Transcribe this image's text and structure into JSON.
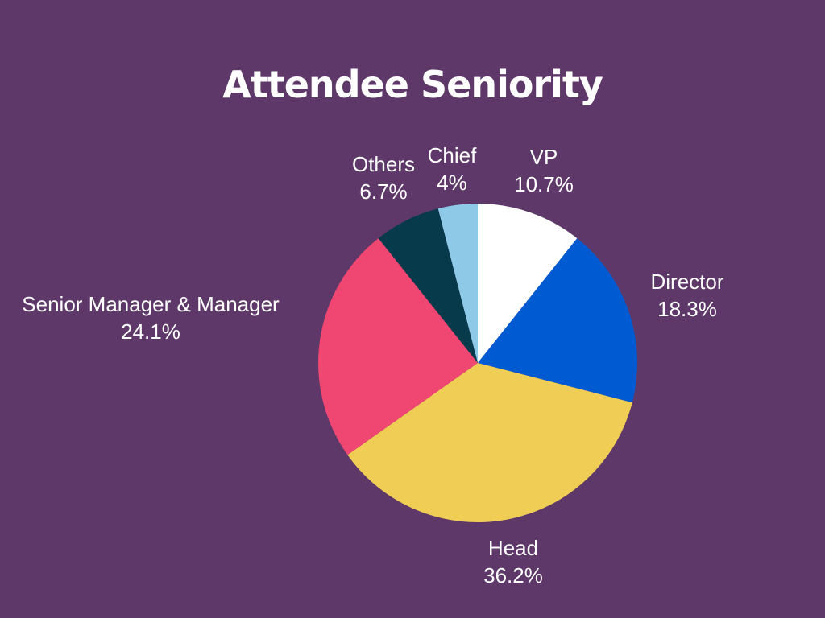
{
  "chart_data": {
    "type": "pie",
    "title": "Attendee Seniority",
    "slices": [
      {
        "label": "VP",
        "value": 10.7,
        "value_label": "10.7%",
        "color": "#ffffff"
      },
      {
        "label": "Director",
        "value": 18.3,
        "value_label": "18.3%",
        "color": "#005bd3"
      },
      {
        "label": "Head",
        "value": 36.2,
        "value_label": "36.2%",
        "color": "#f0cd55"
      },
      {
        "label": "Senior Manager & Manager",
        "value": 24.1,
        "value_label": "24.1%",
        "color": "#ef4672"
      },
      {
        "label": "Others",
        "value": 6.7,
        "value_label": "6.7%",
        "color": "#073a4b"
      },
      {
        "label": "Chief",
        "value": 4,
        "value_label": "4%",
        "color": "#8ec9e8"
      }
    ],
    "start_angle": "12 o'clock",
    "direction": "clockwise",
    "legend": "none",
    "colors": {
      "background": "#5d3868",
      "text": "#ffffff"
    }
  }
}
